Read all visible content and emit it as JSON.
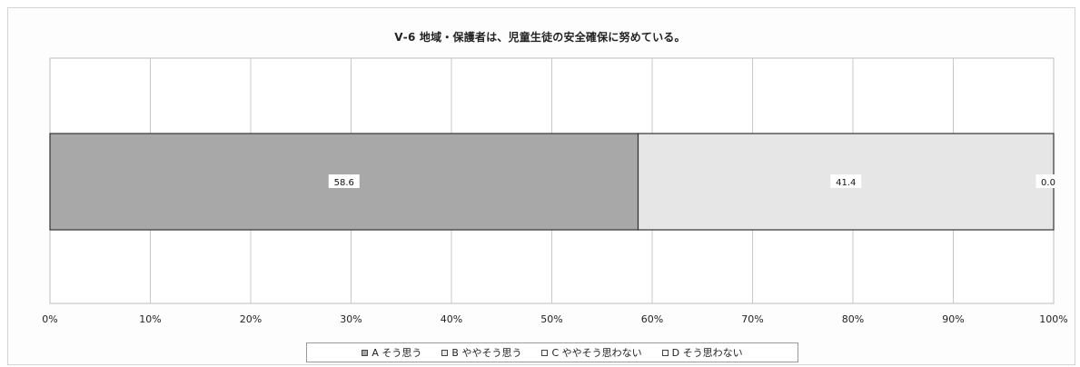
{
  "chart_data": {
    "type": "bar",
    "orientation": "horizontal-stacked-100",
    "title": "Ⅴ-6 地域・保護者は、児童生徒の安全確保に努めている。",
    "categories": [
      ""
    ],
    "series": [
      {
        "name": "A そう思う",
        "values": [
          58.6
        ],
        "label": "58.6",
        "color": "#a8a8a8"
      },
      {
        "name": "B ややそう思う",
        "values": [
          41.4
        ],
        "label": "41.4",
        "color": "#e6e6e6"
      },
      {
        "name": "C ややそう思わない",
        "values": [
          0.0
        ],
        "label": "0.0",
        "color": "#ffffff"
      },
      {
        "name": "D そう思わない",
        "values": [
          0.0
        ],
        "label": "",
        "color": "#ffffff"
      }
    ],
    "xlim": [
      0,
      100
    ],
    "xticks": [
      "0%",
      "10%",
      "20%",
      "30%",
      "40%",
      "50%",
      "60%",
      "70%",
      "80%",
      "90%",
      "100%"
    ],
    "grid": true,
    "legend_position": "bottom"
  }
}
